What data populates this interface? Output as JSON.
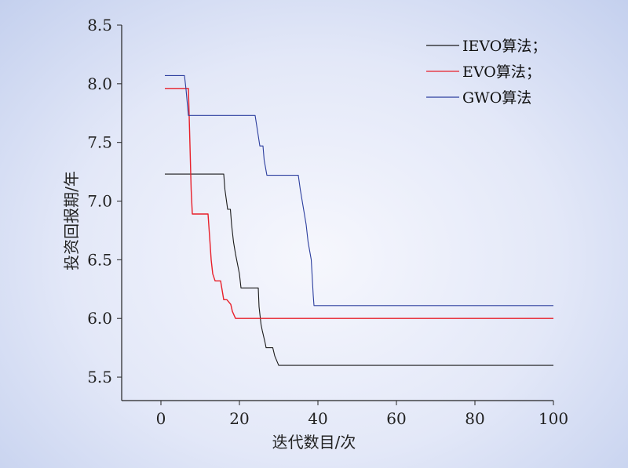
{
  "chart_data": {
    "type": "line",
    "title": "",
    "xlabel": "迭代数目/次",
    "ylabel": "投资回报期/年",
    "xlim": [
      -10,
      100
    ],
    "ylim": [
      5.3,
      8.5
    ],
    "xticks": [
      0,
      20,
      40,
      60,
      80,
      100
    ],
    "xtick_labels": [
      "0",
      "20",
      "40",
      "60",
      "80",
      "100"
    ],
    "yticks": [
      5.5,
      6.0,
      6.5,
      7.0,
      7.5,
      8.0,
      8.5
    ],
    "ytick_labels": [
      "5.5",
      "6.0",
      "6.5",
      "7.0",
      "7.5",
      "8.0",
      "8.5"
    ],
    "grid": false,
    "legend_position": "top-right",
    "series": [
      {
        "name": "IEVO算法；",
        "color": "#1a1a1a",
        "x": [
          1,
          16,
          16.3,
          17,
          17.7,
          18,
          18.5,
          19,
          20,
          20.4,
          24.8,
          25,
          25.5,
          25.8,
          26.5,
          26.8,
          27,
          28.5,
          29,
          30,
          100
        ],
        "y": [
          7.23,
          7.23,
          7.1,
          6.93,
          6.93,
          6.8,
          6.65,
          6.55,
          6.38,
          6.26,
          6.26,
          6.1,
          5.95,
          5.9,
          5.8,
          5.75,
          5.75,
          5.75,
          5.68,
          5.6,
          5.6
        ]
      },
      {
        "name": "EVO算法；",
        "color": "#e8202a",
        "x": [
          1,
          7,
          7.3,
          7.7,
          8,
          12,
          12.5,
          12.8,
          13.2,
          13.8,
          15.2,
          15.5,
          16,
          16.8,
          17.8,
          18.2,
          19,
          100
        ],
        "y": [
          7.96,
          7.96,
          7.6,
          7.1,
          6.89,
          6.89,
          6.65,
          6.5,
          6.38,
          6.32,
          6.32,
          6.26,
          6.16,
          6.16,
          6.12,
          6.06,
          6.0,
          6.0
        ]
      },
      {
        "name": "GWO算法",
        "color": "#2c3e9e",
        "x": [
          1,
          6,
          6.4,
          7,
          24,
          24.6,
          25.2,
          26,
          26.3,
          27,
          35,
          35.5,
          37,
          37.5,
          38.3,
          38.8,
          39,
          100
        ],
        "y": [
          8.07,
          8.07,
          7.95,
          7.73,
          7.73,
          7.6,
          7.47,
          7.47,
          7.35,
          7.22,
          7.22,
          7.1,
          6.8,
          6.65,
          6.5,
          6.2,
          6.11,
          6.11
        ]
      }
    ]
  }
}
